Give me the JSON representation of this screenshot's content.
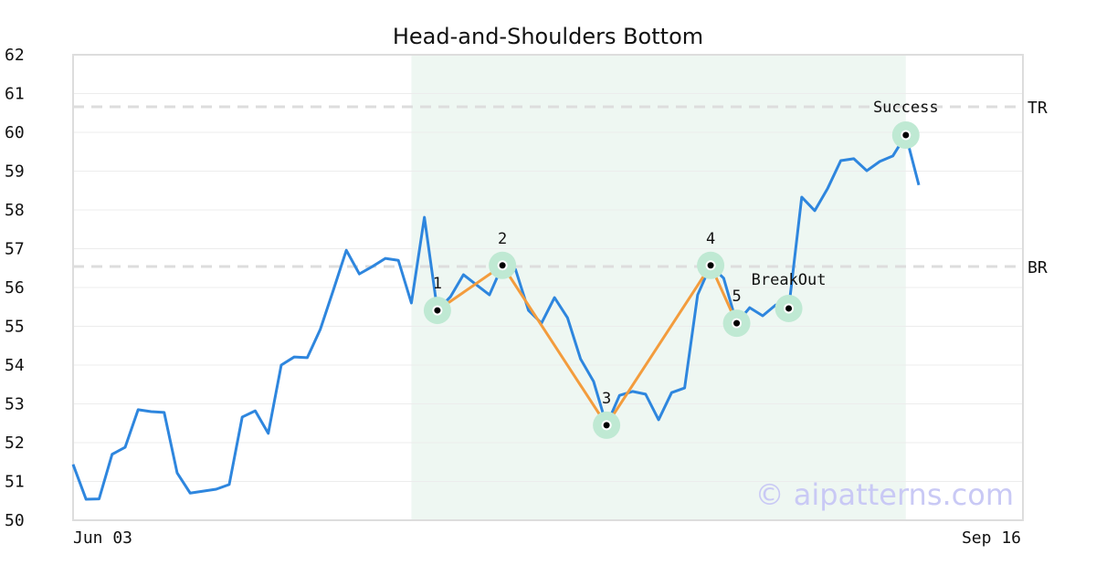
{
  "chart_data": {
    "type": "line",
    "title": "Head-and-Shoulders Bottom",
    "x": [
      0,
      1,
      2,
      3,
      4,
      5,
      6,
      7,
      8,
      9,
      10,
      11,
      12,
      13,
      14,
      15,
      16,
      17,
      18,
      19,
      20,
      21,
      22,
      23,
      24,
      25,
      26,
      27,
      28,
      29,
      30,
      31,
      32,
      33,
      34,
      35,
      36,
      37,
      38,
      39,
      40,
      41,
      42,
      43,
      44,
      45,
      46,
      47,
      48,
      49,
      50,
      51,
      52,
      53,
      54,
      55,
      56,
      57,
      58,
      59,
      60,
      61,
      62,
      63,
      64,
      65
    ],
    "values": [
      51.44,
      50.54,
      50.55,
      51.7,
      51.88,
      52.85,
      52.8,
      52.78,
      51.22,
      50.7,
      50.75,
      50.8,
      50.92,
      52.66,
      52.82,
      52.24,
      54.0,
      54.21,
      54.19,
      54.92,
      55.93,
      56.96,
      56.35,
      56.54,
      56.75,
      56.7,
      55.6,
      57.81,
      55.41,
      55.76,
      56.33,
      56.07,
      55.81,
      56.57,
      56.47,
      55.41,
      55.08,
      55.74,
      55.22,
      54.16,
      53.58,
      52.45,
      53.22,
      53.32,
      53.25,
      52.59,
      53.29,
      53.41,
      55.81,
      56.57,
      56.24,
      55.08,
      55.48,
      55.27,
      55.55,
      55.46,
      58.33,
      57.98,
      58.56,
      59.27,
      59.32,
      59.01,
      59.25,
      59.39,
      59.93,
      58.64
    ],
    "color": "#2e86de",
    "xlim": [
      0,
      73
    ],
    "xticks": [
      {
        "value": 0,
        "label": "Jun 03"
      },
      {
        "value": 73,
        "label": "Sep 16"
      }
    ],
    "ylim": [
      50,
      62
    ],
    "yticks": [
      50,
      51,
      52,
      53,
      54,
      55,
      56,
      57,
      58,
      59,
      60,
      61,
      62
    ],
    "grid": true,
    "highlight": [
      26,
      64
    ],
    "pattern": {
      "color": "#f39c3d",
      "points": [
        {
          "index": 28,
          "label": "1"
        },
        {
          "index": 33,
          "label": "2"
        },
        {
          "index": 41,
          "label": "3"
        },
        {
          "index": 49,
          "label": "4"
        },
        {
          "index": 51,
          "label": "5"
        }
      ]
    },
    "events": [
      {
        "index": 55,
        "label": "BreakOut"
      },
      {
        "index": 64,
        "label": "Success"
      }
    ],
    "levels": [
      {
        "label": "TR",
        "value": 60.66
      },
      {
        "label": "BR",
        "value": 56.54
      }
    ],
    "watermark": "© aipatterns.com"
  }
}
